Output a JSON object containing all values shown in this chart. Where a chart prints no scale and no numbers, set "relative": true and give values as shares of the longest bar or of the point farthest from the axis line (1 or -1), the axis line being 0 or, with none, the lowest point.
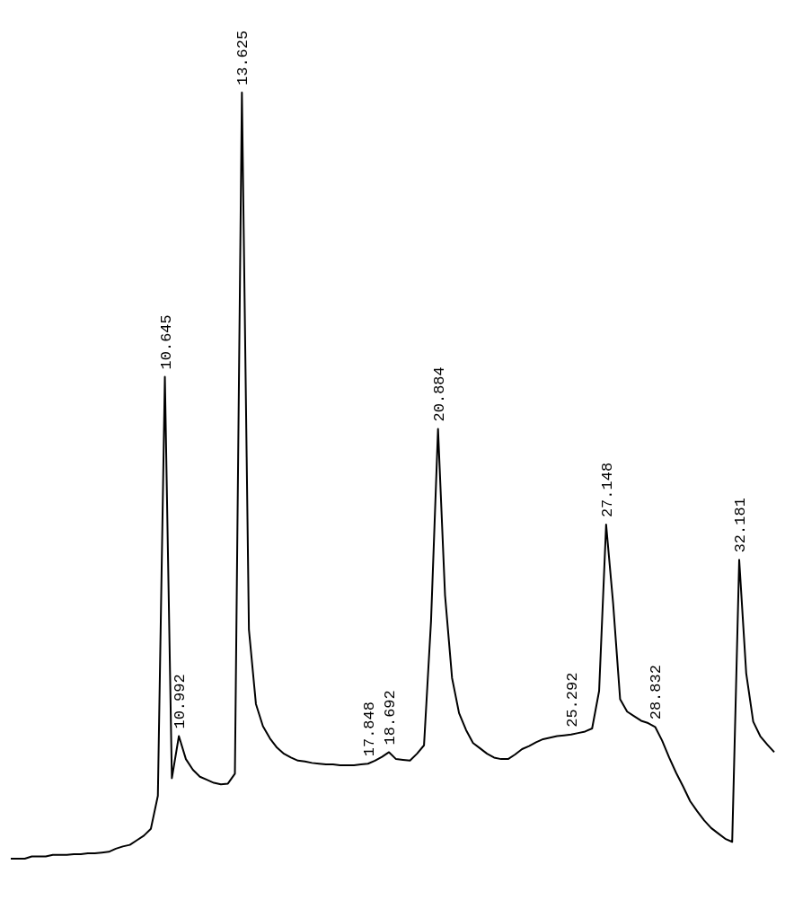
{
  "chart_data": {
    "type": "line",
    "relative": true,
    "marker": "none",
    "line_style": "solid",
    "categories": [
      null,
      null,
      null,
      null,
      null,
      null,
      null,
      null,
      null,
      null,
      null,
      null,
      null,
      null,
      null,
      null,
      null,
      null,
      null,
      null,
      null,
      null,
      "10.645",
      null,
      "10.992",
      null,
      null,
      null,
      null,
      null,
      null,
      null,
      null,
      "13.625",
      null,
      null,
      null,
      null,
      null,
      null,
      null,
      null,
      null,
      null,
      null,
      null,
      null,
      null,
      null,
      null,
      null,
      "17.848",
      null,
      null,
      "18.692",
      null,
      null,
      null,
      null,
      null,
      null,
      "20.884",
      null,
      null,
      null,
      null,
      null,
      null,
      null,
      null,
      null,
      null,
      null,
      null,
      null,
      null,
      null,
      null,
      null,
      null,
      "25.292",
      null,
      null,
      null,
      null,
      "27.148",
      null,
      null,
      null,
      null,
      null,
      null,
      "28.832",
      null,
      null,
      null,
      null,
      null,
      null,
      null,
      null,
      null,
      null,
      null,
      "32.181",
      null,
      null,
      null,
      null,
      null
    ],
    "series": [
      {
        "color": "#000000",
        "values": [
          0,
          0,
          0,
          0.003,
          0.003,
          0.003,
          0.005,
          0.005,
          0.005,
          0.006,
          0.006,
          0.007,
          0.007,
          0.008,
          0.009,
          0.013,
          0.016,
          0.018,
          0.024,
          0.03,
          0.039,
          0.082,
          0.629,
          0.105,
          0.16,
          0.13,
          0.116,
          0.107,
          0.103,
          0.099,
          0.097,
          0.098,
          0.111,
          1,
          0.299,
          0.202,
          0.173,
          0.157,
          0.145,
          0.137,
          0.132,
          0.128,
          0.127,
          0.125,
          0.124,
          0.123,
          0.123,
          0.122,
          0.122,
          0.122,
          0.123,
          0.124,
          0.128,
          0.133,
          0.139,
          0.13,
          0.129,
          0.128,
          0.137,
          0.148,
          0.31,
          0.561,
          0.344,
          0.236,
          0.19,
          0.168,
          0.151,
          0.144,
          0.137,
          0.132,
          0.13,
          0.13,
          0.136,
          0.143,
          0.147,
          0.152,
          0.156,
          0.158,
          0.16,
          0.161,
          0.162,
          0.164,
          0.166,
          0.17,
          0.219,
          0.436,
          0.333,
          0.208,
          0.192,
          0.186,
          0.18,
          0.177,
          0.172,
          0.154,
          0.132,
          0.112,
          0.094,
          0.075,
          0.062,
          0.05,
          0.04,
          0.033,
          0.026,
          0.022,
          0.39,
          0.242,
          0.179,
          0.16,
          0.149,
          0.139
        ]
      }
    ]
  }
}
